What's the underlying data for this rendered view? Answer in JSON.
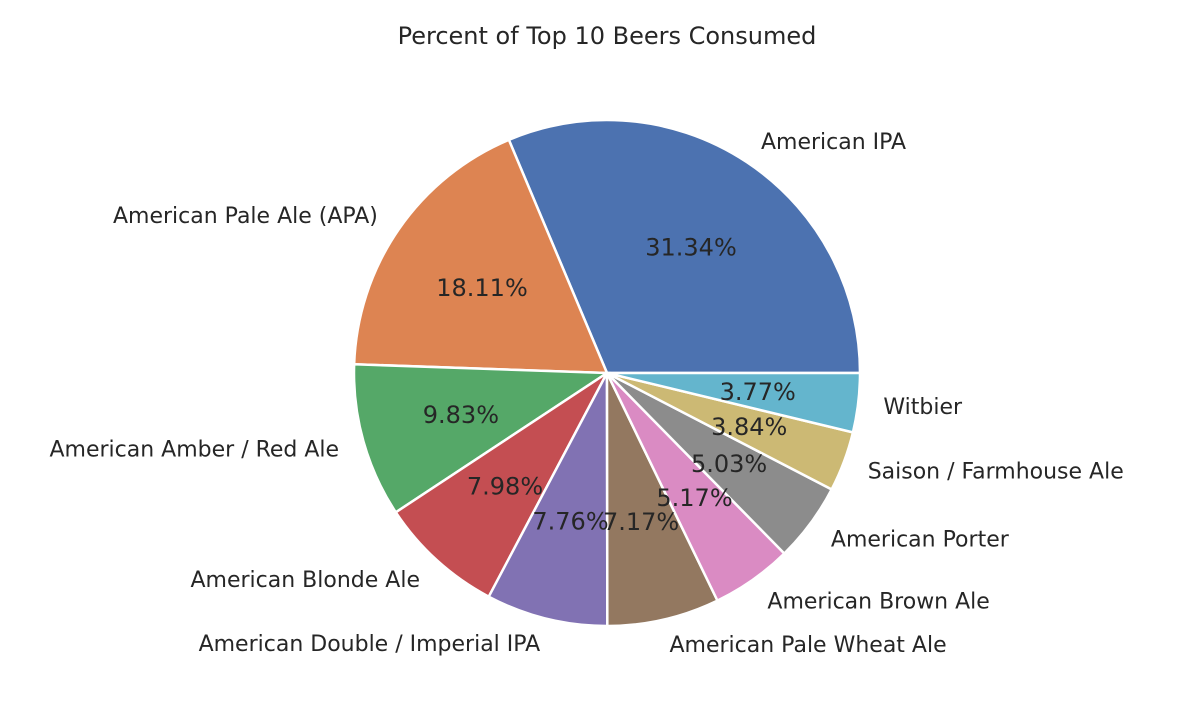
{
  "chart_data": {
    "type": "pie",
    "title": "Percent of Top 10 Beers Consumed",
    "categories": [
      "American IPA",
      "American Pale Ale (APA)",
      "American Amber / Red Ale",
      "American Blonde Ale",
      "American Double / Imperial IPA",
      "American Pale Wheat Ale",
      "American Brown Ale",
      "American Porter",
      "Saison / Farmhouse Ale",
      "Witbier"
    ],
    "values": [
      31.34,
      18.11,
      9.83,
      7.98,
      7.76,
      7.17,
      5.17,
      5.03,
      3.84,
      3.77
    ],
    "value_labels": [
      "31.34%",
      "18.11%",
      "9.83%",
      "7.98%",
      "7.76%",
      "7.17%",
      "5.17%",
      "5.03%",
      "3.84%",
      "3.77%"
    ],
    "colors": [
      "#4c72b0",
      "#dd8452",
      "#55a868",
      "#c44e52",
      "#8172b3",
      "#937860",
      "#da8bc3",
      "#8c8c8c",
      "#ccb974",
      "#64b5cd"
    ],
    "start_angle_deg": 0,
    "direction": "counterclockwise"
  }
}
